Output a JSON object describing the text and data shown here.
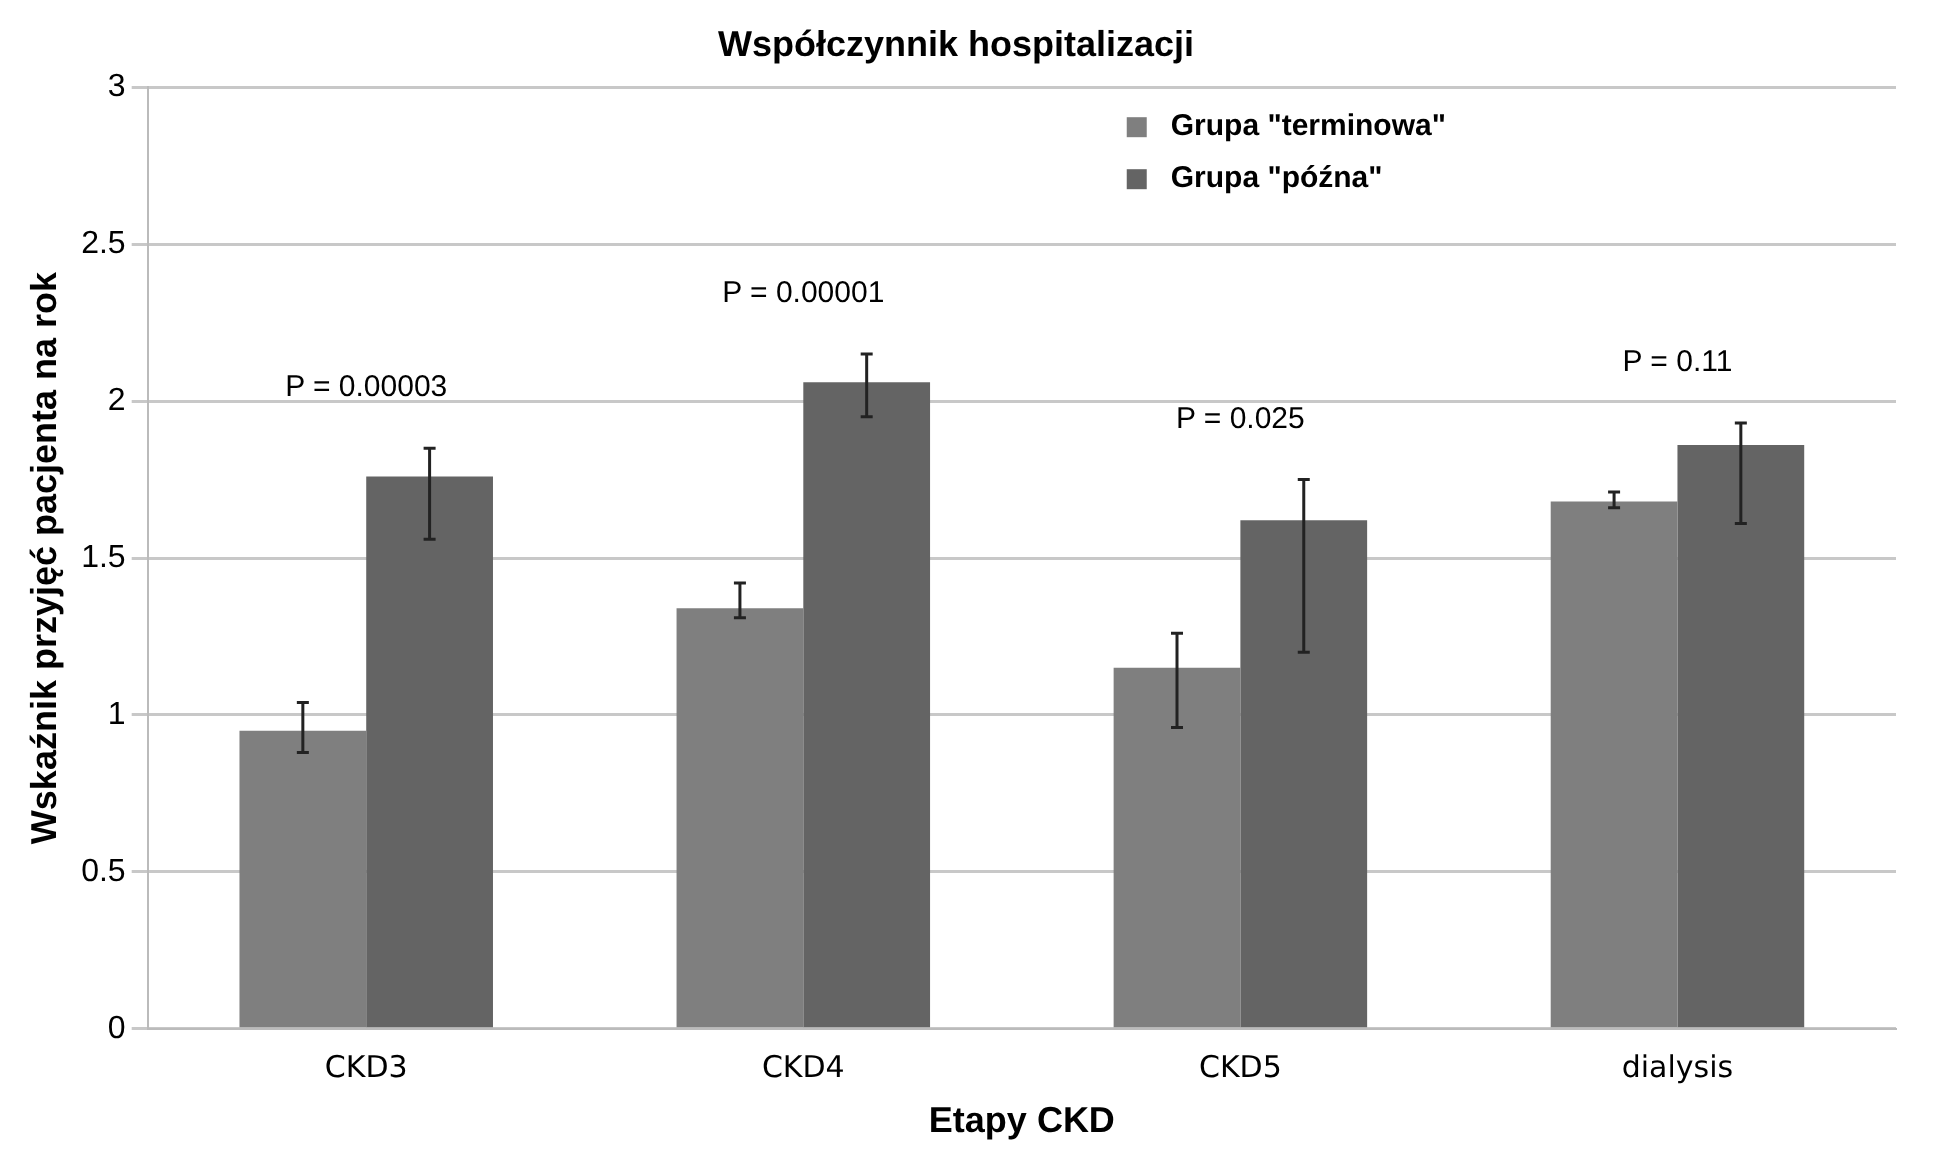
{
  "chart_data": {
    "type": "bar",
    "title": "Współczynnik hospitalizacji",
    "xlabel": "Etapy CKD",
    "ylabel": "Wskaźnik przyjęć pacjenta na rok",
    "categories": [
      "CKD3",
      "CKD4",
      "CKD5",
      "dialysis"
    ],
    "series": [
      {
        "name": "Grupa \"terminowa\"",
        "color": "#7f7f7f",
        "values": [
          0.95,
          1.34,
          1.15,
          1.68
        ],
        "errors": [
          [
            0.88,
            1.04
          ],
          [
            1.31,
            1.42
          ],
          [
            0.96,
            1.26
          ],
          [
            1.66,
            1.71
          ]
        ]
      },
      {
        "name": "Grupa \"późna\"",
        "color": "#646464",
        "values": [
          1.76,
          2.06,
          1.62,
          1.86
        ],
        "errors": [
          [
            1.56,
            1.85
          ],
          [
            1.95,
            2.15
          ],
          [
            1.2,
            1.75
          ],
          [
            1.61,
            1.93
          ]
        ]
      }
    ],
    "ylim": [
      0,
      3
    ],
    "yticks": [
      0,
      0.5,
      1,
      1.5,
      2,
      2.5,
      3
    ],
    "grid": "y",
    "legend": "top right",
    "annotations": [
      "P = 0.00003",
      "P = 0.00001",
      "P = 0.025",
      "P = 0.11"
    ]
  }
}
